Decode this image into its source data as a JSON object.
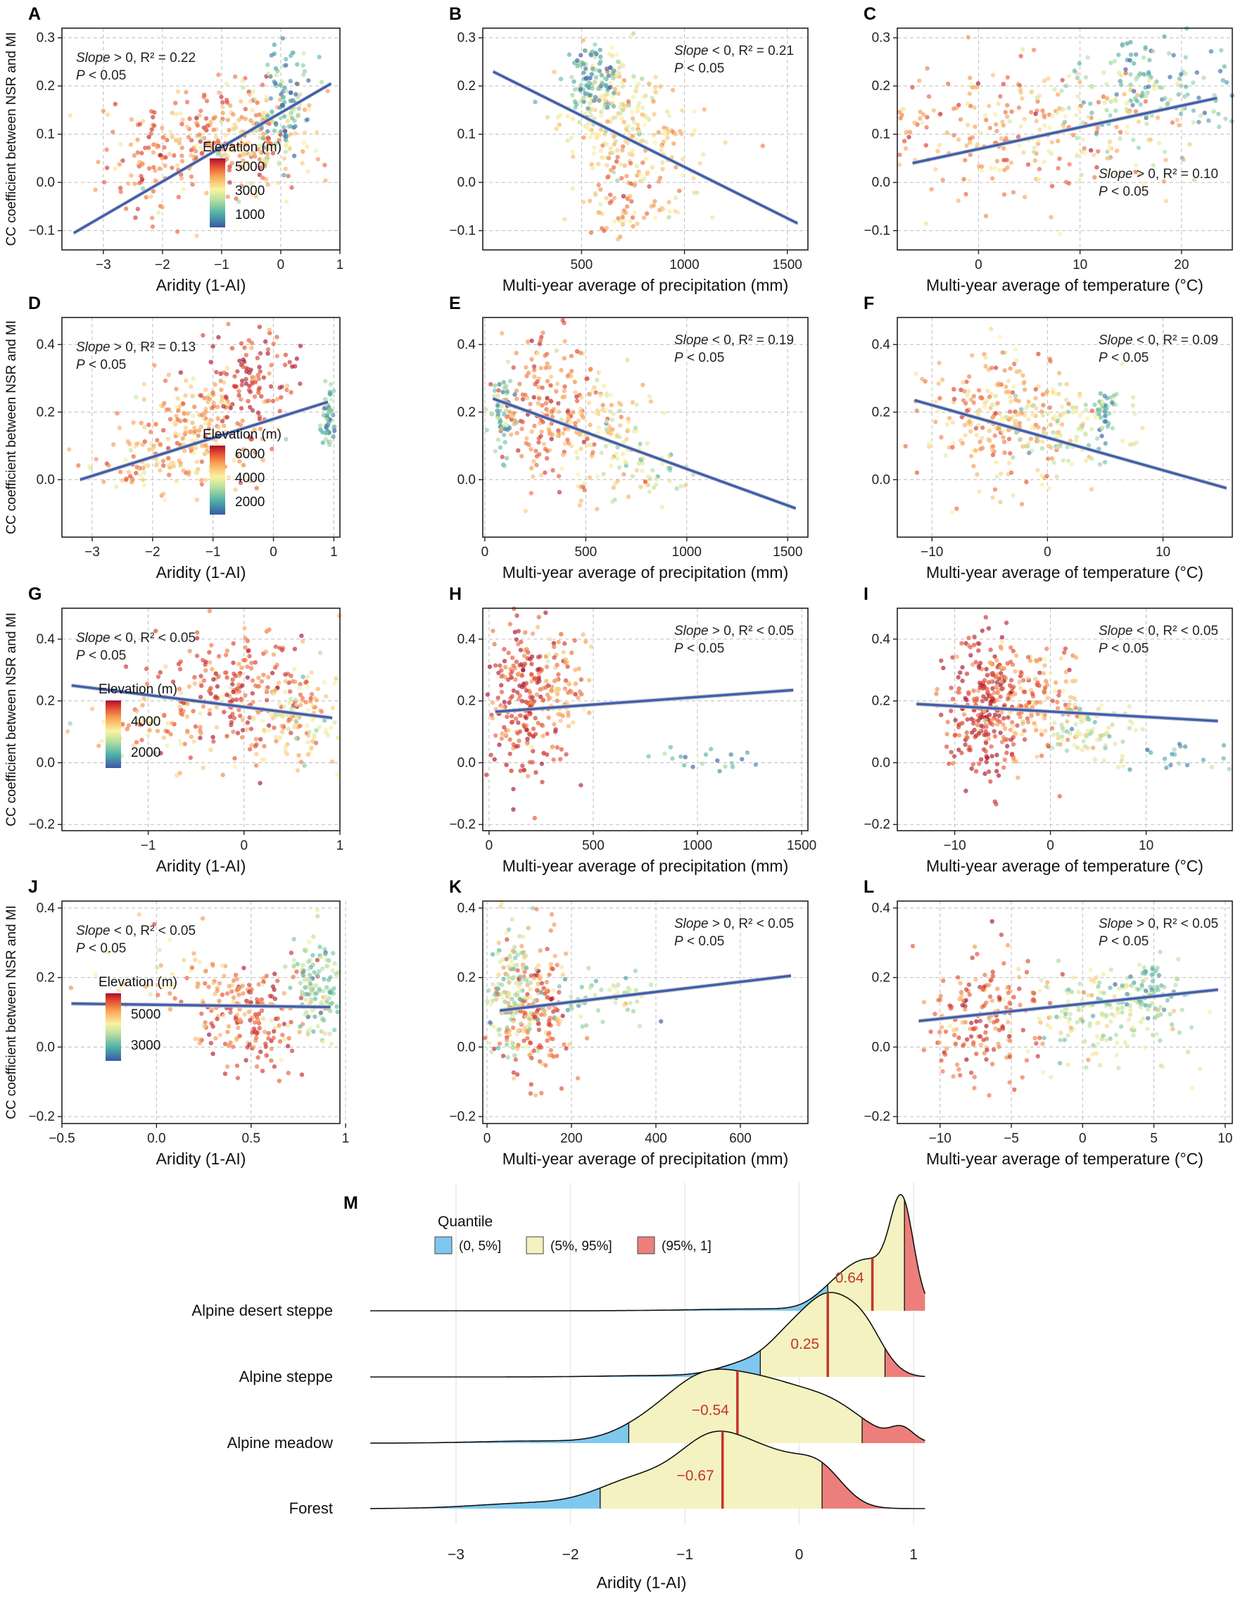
{
  "figure": {
    "y_axis_label": "CC coefficient between NSR and MI"
  },
  "chart_data": [
    {
      "id": "A",
      "type": "scatter",
      "xlabel": "Aridity (1-AI)",
      "ylabel": "CC coefficient between NSR and MI",
      "xlim": [
        -3.7,
        1.0
      ],
      "ylim": [
        -0.14,
        0.32
      ],
      "xticks": [
        -3,
        -2,
        -1,
        0,
        1
      ],
      "xtick_labels": [
        "−3",
        "−2",
        "−1",
        "0",
        "1"
      ],
      "yticks": [
        -0.1,
        0,
        0.1,
        0.2,
        0.3
      ],
      "ytick_labels": [
        "−0.1",
        "0.0",
        "0.1",
        "0.2",
        "0.3"
      ],
      "fit": {
        "x": [
          -3.5,
          0.85
        ],
        "y": [
          -0.105,
          0.205
        ]
      },
      "ann_slope": "Slope",
      "ann_rest": " > 0, R² = 0.22",
      "ann_p": "P",
      "ann_prest": " < 0.05",
      "ann_pos": "top-left",
      "legend": {
        "title": "Elevation (m)",
        "labels": [
          "5000",
          "3000",
          "1000"
        ],
        "position": "bottom-right"
      }
    },
    {
      "id": "B",
      "type": "scatter",
      "xlabel": "Multi-year average of precipitation (mm)",
      "ylabel": "CC coefficient between NSR and MI",
      "xlim": [
        20,
        1600
      ],
      "ylim": [
        -0.14,
        0.32
      ],
      "xticks": [
        500,
        1000,
        1500
      ],
      "xtick_labels": [
        "500",
        "1000",
        "1500"
      ],
      "yticks": [
        -0.1,
        0,
        0.1,
        0.2,
        0.3
      ],
      "ytick_labels": [
        "−0.1",
        "0.0",
        "0.1",
        "0.2",
        "0.3"
      ],
      "fit": {
        "x": [
          70,
          1550
        ],
        "y": [
          0.23,
          -0.085
        ]
      },
      "ann_slope": "Slope",
      "ann_rest": " < 0, R² = 0.21",
      "ann_p": "P",
      "ann_prest": " < 0.05",
      "ann_pos": "top-right"
    },
    {
      "id": "C",
      "type": "scatter",
      "xlabel": "Multi-year average of temperature (°C)",
      "ylabel": "CC coefficient between NSR and MI",
      "xlim": [
        -8,
        25
      ],
      "ylim": [
        -0.14,
        0.32
      ],
      "xticks": [
        0,
        10,
        20
      ],
      "xtick_labels": [
        "0",
        "10",
        "20"
      ],
      "yticks": [
        -0.1,
        0,
        0.1,
        0.2,
        0.3
      ],
      "ytick_labels": [
        "−0.1",
        "0.0",
        "0.1",
        "0.2",
        "0.3"
      ],
      "fit": {
        "x": [
          -6.5,
          23.5
        ],
        "y": [
          0.04,
          0.175
        ]
      },
      "ann_slope": "Slope",
      "ann_rest": " > 0, R² = 0.10",
      "ann_p": "P",
      "ann_prest": " < 0.05",
      "ann_pos": "bottom-right"
    },
    {
      "id": "D",
      "type": "scatter",
      "xlabel": "Aridity (1-AI)",
      "ylabel": "CC coefficient between NSR and MI",
      "xlim": [
        -3.5,
        1.1
      ],
      "ylim": [
        -0.17,
        0.48
      ],
      "xticks": [
        -3,
        -2,
        -1,
        0,
        1
      ],
      "xtick_labels": [
        "−3",
        "−2",
        "−1",
        "0",
        "1"
      ],
      "yticks": [
        0,
        0.2,
        0.4
      ],
      "ytick_labels": [
        "0.0",
        "0.2",
        "0.4"
      ],
      "fit": {
        "x": [
          -3.2,
          0.9
        ],
        "y": [
          0.0,
          0.23
        ]
      },
      "ann_slope": "Slope",
      "ann_rest": " > 0, R² = 0.13",
      "ann_p": "P",
      "ann_prest": " < 0.05",
      "ann_pos": "top-left",
      "legend": {
        "title": "Elevation (m)",
        "labels": [
          "6000",
          "4000",
          "2000"
        ],
        "position": "bottom-right"
      }
    },
    {
      "id": "E",
      "type": "scatter",
      "xlabel": "Multi-year average of precipitation (mm)",
      "ylabel": "CC coefficient between NSR and MI",
      "xlim": [
        -10,
        1600
      ],
      "ylim": [
        -0.17,
        0.48
      ],
      "xticks": [
        0,
        500,
        1000,
        1500
      ],
      "xtick_labels": [
        "0",
        "500",
        "1000",
        "1500"
      ],
      "yticks": [
        0,
        0.2,
        0.4
      ],
      "ytick_labels": [
        "0.0",
        "0.2",
        "0.4"
      ],
      "fit": {
        "x": [
          40,
          1540
        ],
        "y": [
          0.24,
          -0.085
        ]
      },
      "ann_slope": "Slope",
      "ann_rest": " < 0, R² = 0.19",
      "ann_p": "P",
      "ann_prest": " < 0.05",
      "ann_pos": "top-right"
    },
    {
      "id": "F",
      "type": "scatter",
      "xlabel": "Multi-year average of temperature (°C)",
      "ylabel": "CC coefficient between NSR and MI",
      "xlim": [
        -13,
        16
      ],
      "ylim": [
        -0.17,
        0.48
      ],
      "xticks": [
        -10,
        0,
        10
      ],
      "xtick_labels": [
        "−10",
        "0",
        "10"
      ],
      "yticks": [
        0,
        0.2,
        0.4
      ],
      "ytick_labels": [
        "0.0",
        "0.2",
        "0.4"
      ],
      "fit": {
        "x": [
          -11.5,
          15.5
        ],
        "y": [
          0.235,
          -0.025
        ]
      },
      "ann_slope": "Slope",
      "ann_rest": " < 0, R² = 0.09",
      "ann_p": "P",
      "ann_prest": " < 0.05",
      "ann_pos": "top-right"
    },
    {
      "id": "G",
      "type": "scatter",
      "xlabel": "Aridity (1-AI)",
      "ylabel": "CC coefficient between NSR and MI",
      "xlim": [
        -1.9,
        1.0
      ],
      "ylim": [
        -0.22,
        0.5
      ],
      "xticks": [
        -1,
        0,
        1
      ],
      "xtick_labels": [
        "−1",
        "0",
        "1"
      ],
      "yticks": [
        -0.2,
        0,
        0.2,
        0.4
      ],
      "ytick_labels": [
        "−0.2",
        "0.0",
        "0.2",
        "0.4"
      ],
      "fit": {
        "x": [
          -1.8,
          0.92
        ],
        "y": [
          0.25,
          0.145
        ]
      },
      "ann_slope": "Slope",
      "ann_rest": " < 0, R² < 0.05",
      "ann_p": "P",
      "ann_prest": " < 0.05",
      "ann_pos": "top-left",
      "legend": {
        "title": "Elevation (m)",
        "labels": [
          "4000",
          "2000"
        ],
        "position": "bottom-left"
      }
    },
    {
      "id": "H",
      "type": "scatter",
      "xlabel": "Multi-year average of precipitation (mm)",
      "ylabel": "CC coefficient between NSR and MI",
      "xlim": [
        -30,
        1530
      ],
      "ylim": [
        -0.22,
        0.5
      ],
      "xticks": [
        0,
        500,
        1000,
        1500
      ],
      "xtick_labels": [
        "0",
        "500",
        "1000",
        "1500"
      ],
      "yticks": [
        -0.2,
        0,
        0.2,
        0.4
      ],
      "ytick_labels": [
        "−0.2",
        "0.0",
        "0.2",
        "0.4"
      ],
      "fit": {
        "x": [
          30,
          1460
        ],
        "y": [
          0.165,
          0.235
        ]
      },
      "ann_slope": "Slope",
      "ann_rest": " > 0, R² < 0.05",
      "ann_p": "P",
      "ann_prest": " < 0.05",
      "ann_pos": "top-right"
    },
    {
      "id": "I",
      "type": "scatter",
      "xlabel": "Multi-year average of temperature (°C)",
      "ylabel": "CC coefficient between NSR and MI",
      "xlim": [
        -16,
        19
      ],
      "ylim": [
        -0.22,
        0.5
      ],
      "xticks": [
        -10,
        0,
        10
      ],
      "xtick_labels": [
        "−10",
        "0",
        "10"
      ],
      "yticks": [
        -0.2,
        0,
        0.2,
        0.4
      ],
      "ytick_labels": [
        "−0.2",
        "0.0",
        "0.2",
        "0.4"
      ],
      "fit": {
        "x": [
          -14,
          17.5
        ],
        "y": [
          0.19,
          0.135
        ]
      },
      "ann_slope": "Slope",
      "ann_rest": " < 0, R² < 0.05",
      "ann_p": "P",
      "ann_prest": " < 0.05",
      "ann_pos": "top-right"
    },
    {
      "id": "J",
      "type": "scatter",
      "xlabel": "Aridity (1-AI)",
      "ylabel": "CC coefficient between NSR and MI",
      "xlim": [
        -0.5,
        0.97
      ],
      "ylim": [
        -0.22,
        0.42
      ],
      "xticks": [
        -0.5,
        0,
        0.5,
        1
      ],
      "xtick_labels": [
        "−0.5",
        "0.0",
        "0.5",
        "1"
      ],
      "yticks": [
        -0.2,
        0,
        0.2,
        0.4
      ],
      "ytick_labels": [
        "−0.2",
        "0.0",
        "0.2",
        "0.4"
      ],
      "fit": {
        "x": [
          -0.45,
          0.92
        ],
        "y": [
          0.125,
          0.115
        ]
      },
      "ann_slope": "Slope",
      "ann_rest": " < 0, R² < 0.05",
      "ann_p": "P",
      "ann_prest": " < 0.05",
      "ann_pos": "top-left",
      "legend": {
        "title": "Elevation (m)",
        "labels": [
          "5000",
          "3000"
        ],
        "position": "bottom-left"
      }
    },
    {
      "id": "K",
      "type": "scatter",
      "xlabel": "Multi-year average of precipitation (mm)",
      "ylabel": "CC coefficient between NSR and MI",
      "xlim": [
        -10,
        760
      ],
      "ylim": [
        -0.22,
        0.42
      ],
      "xticks": [
        0,
        200,
        400,
        600
      ],
      "xtick_labels": [
        "0",
        "200",
        "400",
        "600"
      ],
      "yticks": [
        -0.2,
        0,
        0.2,
        0.4
      ],
      "ytick_labels": [
        "−0.2",
        "0.0",
        "0.2",
        "0.4"
      ],
      "fit": {
        "x": [
          30,
          720
        ],
        "y": [
          0.105,
          0.205
        ]
      },
      "ann_slope": "Slope",
      "ann_rest": " > 0, R² < 0.05",
      "ann_p": "P",
      "ann_prest": " < 0.05",
      "ann_pos": "top-right"
    },
    {
      "id": "L",
      "type": "scatter",
      "xlabel": "Multi-year average of temperature (°C)",
      "ylabel": "CC coefficient between NSR and MI",
      "xlim": [
        -13,
        10.5
      ],
      "ylim": [
        -0.22,
        0.42
      ],
      "xticks": [
        -10,
        -5,
        0,
        5,
        10
      ],
      "xtick_labels": [
        "−10",
        "−5",
        "0",
        "5",
        "10"
      ],
      "yticks": [
        -0.2,
        0,
        0.2,
        0.4
      ],
      "ytick_labels": [
        "−0.2",
        "0.0",
        "0.2",
        "0.4"
      ],
      "fit": {
        "x": [
          -11.5,
          9.5
        ],
        "y": [
          0.075,
          0.165
        ]
      },
      "ann_slope": "Slope",
      "ann_rest": " > 0, R² < 0.05",
      "ann_p": "P",
      "ann_prest": " < 0.05",
      "ann_pos": "top-right"
    },
    {
      "id": "M",
      "type": "ridgeline",
      "xlabel": "Aridity (1-AI)",
      "xlim": [
        -3.8,
        1.35
      ],
      "xticks": [
        -3,
        -2,
        -1,
        0,
        1
      ],
      "xtick_labels": [
        "−3",
        "−2",
        "−1",
        "0",
        "1"
      ],
      "legend": {
        "title": "Quantile",
        "items": [
          {
            "label": "(0, 5%]",
            "color": "#7ec8ef"
          },
          {
            "label": "(5%, 95%]",
            "color": "#f4f2c0"
          },
          {
            "label": "(95%, 1]",
            "color": "#ec7f7c"
          }
        ]
      },
      "categories": [
        {
          "name": "Alpine desert steppe",
          "median": 0.64,
          "median_label": "0.64",
          "q05": 0.25,
          "q95": 0.92,
          "range": [
            -3.75,
            1.1
          ],
          "peaks": [
            [
              0.62,
              0.5,
              0.22
            ],
            [
              0.9,
              1.0,
              0.1
            ],
            [
              0.3,
              0.15,
              0.18
            ],
            [
              -0.3,
              0.02,
              0.6
            ]
          ]
        },
        {
          "name": "Alpine steppe",
          "median": 0.25,
          "median_label": "0.25",
          "q05": -0.34,
          "q95": 0.75,
          "range": [
            -3.75,
            1.1
          ],
          "peaks": [
            [
              -0.05,
              0.55,
              0.2
            ],
            [
              0.25,
              0.8,
              0.18
            ],
            [
              0.55,
              0.7,
              0.18
            ],
            [
              -0.45,
              0.18,
              0.25
            ],
            [
              -1.2,
              0.02,
              0.5
            ]
          ]
        },
        {
          "name": "Alpine meadow",
          "median": -0.54,
          "median_label": "−0.54",
          "q05": -1.49,
          "q95": 0.55,
          "range": [
            -3.75,
            1.1
          ],
          "peaks": [
            [
              -1.3,
              0.25,
              0.3
            ],
            [
              -0.85,
              0.7,
              0.3
            ],
            [
              -0.3,
              0.75,
              0.35
            ],
            [
              0.3,
              0.45,
              0.3
            ],
            [
              0.9,
              0.18,
              0.1
            ],
            [
              -2.3,
              0.03,
              0.5
            ]
          ]
        },
        {
          "name": "Forest",
          "median": -0.67,
          "median_label": "−0.67",
          "q05": -1.74,
          "q95": 0.2,
          "range": [
            -3.75,
            1.1
          ],
          "peaks": [
            [
              -1.4,
              0.35,
              0.35
            ],
            [
              -0.75,
              0.8,
              0.3
            ],
            [
              -0.2,
              0.55,
              0.3
            ],
            [
              0.2,
              0.35,
              0.2
            ],
            [
              -2.3,
              0.07,
              0.5
            ]
          ]
        }
      ]
    }
  ],
  "colors": {
    "fit": "#3f5fae",
    "ci": "#c8c8c8",
    "median": "#c2352c",
    "grid": "#bdbdbd"
  }
}
